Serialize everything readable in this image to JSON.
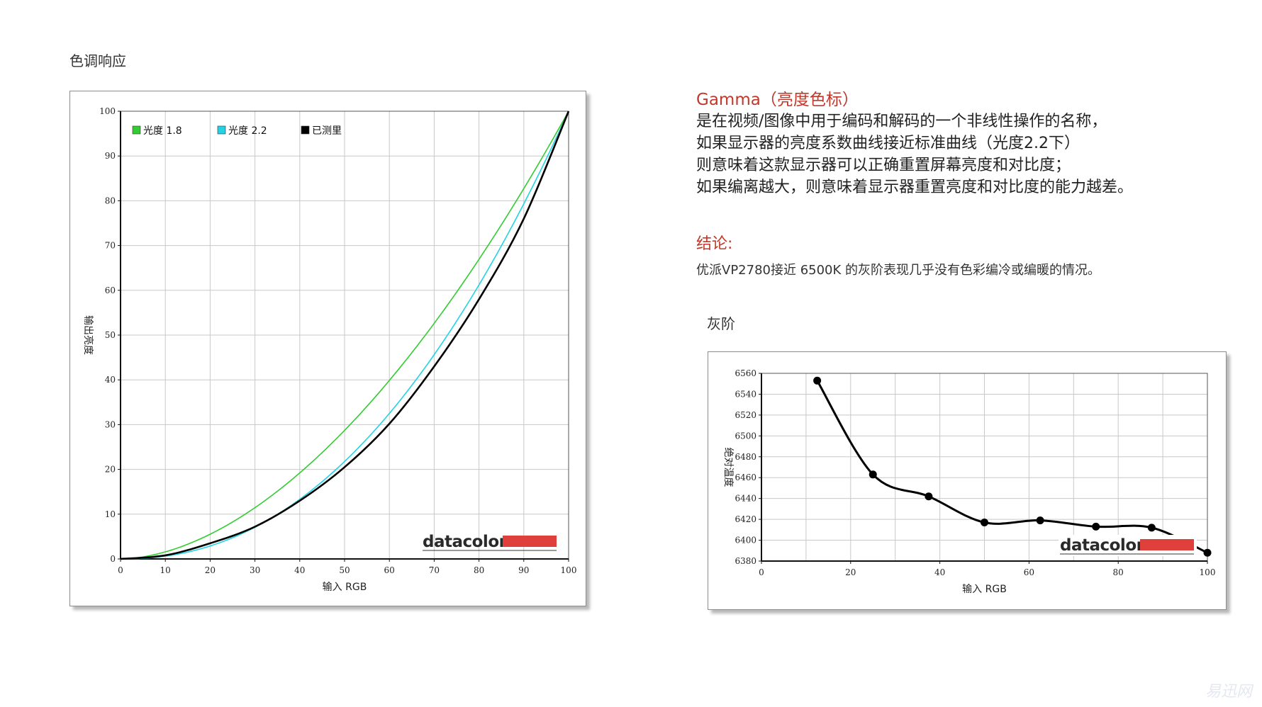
{
  "tone": {
    "title": "色调响应"
  },
  "gray": {
    "title": "灰阶"
  },
  "description": {
    "heading": "Gamma（亮度色标）",
    "lines": [
      "是在视频/图像中用于编码和解码的一个非线性操作的名称，",
      "如果显示器的亮度系数曲线接近标准曲线（光度2.2下）",
      "则意味着这款显示器可以正确重置屏幕亮度和对比度；",
      "如果编离越大，则意味着显示器重置亮度和对比度的能力越差。"
    ]
  },
  "conclusion": {
    "heading": "结论:",
    "text": "优派VP2780接近 6500K 的灰阶表现几乎没有色彩编冷或编暖的情况。"
  },
  "watermark": "易迅网",
  "chart_data": [
    {
      "type": "line",
      "xlabel": "输入 RGB",
      "ylabel": "输出亮度",
      "xlim": [
        0,
        100
      ],
      "ylim": [
        0,
        100
      ],
      "xticks": [
        0,
        10,
        20,
        30,
        40,
        50,
        60,
        70,
        80,
        90,
        100
      ],
      "yticks": [
        0,
        10,
        20,
        30,
        40,
        50,
        60,
        70,
        80,
        90,
        100
      ],
      "grid": true,
      "legend": "top-left",
      "logo": "datacolor",
      "series": [
        {
          "name": "光度 1.8",
          "color": "#33cc33",
          "gamma": 1.8
        },
        {
          "name": "光度 2.2",
          "color": "#22d3e6",
          "gamma": 2.2
        },
        {
          "name": "已测里",
          "color": "#000000",
          "x": [
            0,
            10,
            20,
            30,
            40,
            50,
            60,
            70,
            80,
            90,
            100
          ],
          "y": [
            0,
            0.8,
            3.5,
            7.2,
            13.0,
            20.5,
            30.2,
            43.0,
            58.0,
            76.0,
            100
          ]
        }
      ]
    },
    {
      "type": "line",
      "xlabel": "输入 RGB",
      "ylabel": "绝对温度",
      "xlim": [
        0,
        100
      ],
      "ylim": [
        6380,
        6560
      ],
      "xticks": [
        0,
        20,
        40,
        60,
        80,
        100
      ],
      "yticks": [
        6380,
        6400,
        6420,
        6440,
        6460,
        6480,
        6500,
        6520,
        6540,
        6560
      ],
      "grid": true,
      "logo": "datacolor",
      "series": [
        {
          "name": "",
          "color": "#000000",
          "x": [
            12.5,
            25,
            37.5,
            50,
            62.5,
            75,
            87.5,
            100
          ],
          "y": [
            6553,
            6463,
            6442,
            6417,
            6419,
            6413,
            6412,
            6388
          ]
        }
      ]
    }
  ]
}
